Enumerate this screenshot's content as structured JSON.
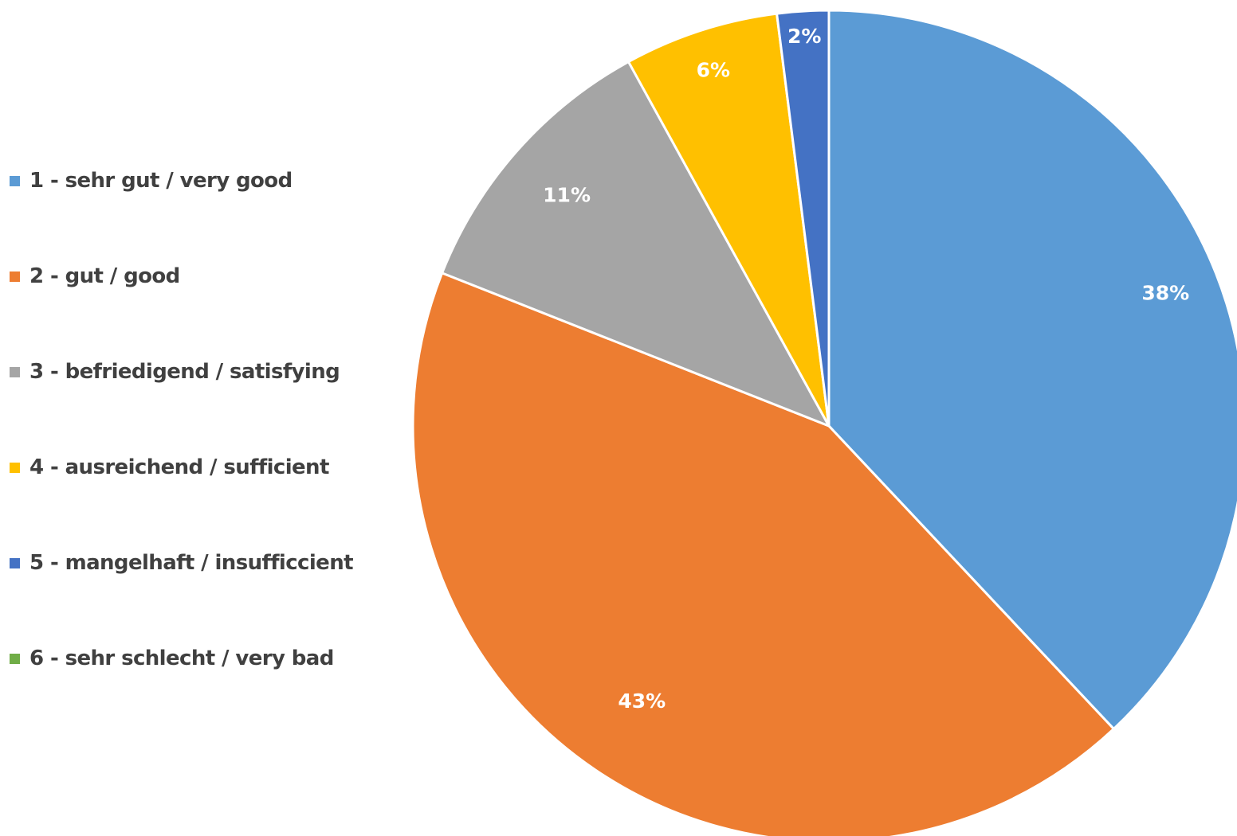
{
  "chart_data": {
    "type": "pie",
    "title": "",
    "categories": [
      "1 - sehr gut / very good",
      "2 - gut / good",
      "3 - befriedigend / satisfying",
      "4 - ausreichend / sufficient",
      "5 - mangelhaft / insufficcient",
      "6 - sehr schlecht / very bad"
    ],
    "values": [
      38,
      43,
      11,
      6,
      2,
      0
    ],
    "data_labels": [
      "38%",
      "43%",
      "11%",
      "6%",
      "2%",
      ""
    ],
    "colors": [
      "#5B9BD5",
      "#ED7D31",
      "#A5A5A5",
      "#FFC000",
      "#4472C4",
      "#70AD47"
    ],
    "start_angle_deg": 0,
    "direction": "clockwise",
    "legend_position": "left"
  }
}
